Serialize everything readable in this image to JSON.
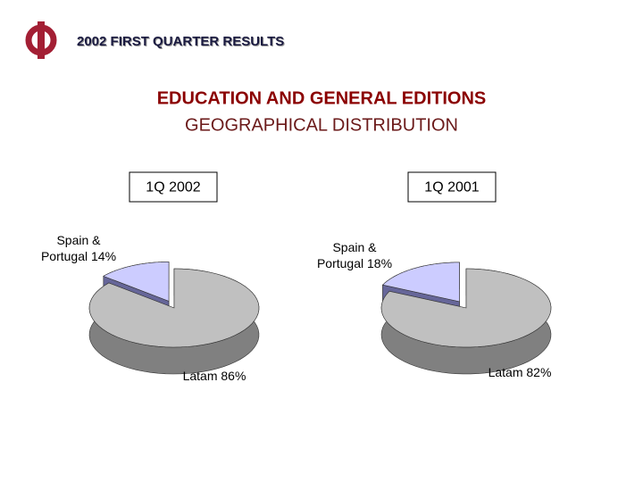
{
  "header": {
    "title": "2002 FIRST QUARTER RESULTS"
  },
  "title": "EDUCATION AND GENERAL EDITIONS",
  "subtitle": "GEOGRAPHICAL DISTRIBUTION",
  "chart_data": [
    {
      "type": "pie",
      "title": "1Q 2002",
      "categories": [
        "Spain & Portugal",
        "Latam"
      ],
      "values": [
        14,
        86
      ],
      "value_labels": [
        "14%",
        "86%"
      ],
      "colors": [
        "#ccccff",
        "#c0c0c0"
      ],
      "side_colors": [
        "#666699",
        "#808080"
      ]
    },
    {
      "type": "pie",
      "title": "1Q 2001",
      "categories": [
        "Spain & Portugal",
        "Latam"
      ],
      "values": [
        18,
        82
      ],
      "value_labels": [
        "18%",
        "82%"
      ],
      "colors": [
        "#ccccff",
        "#c0c0c0"
      ],
      "side_colors": [
        "#666699",
        "#808080"
      ]
    }
  ]
}
